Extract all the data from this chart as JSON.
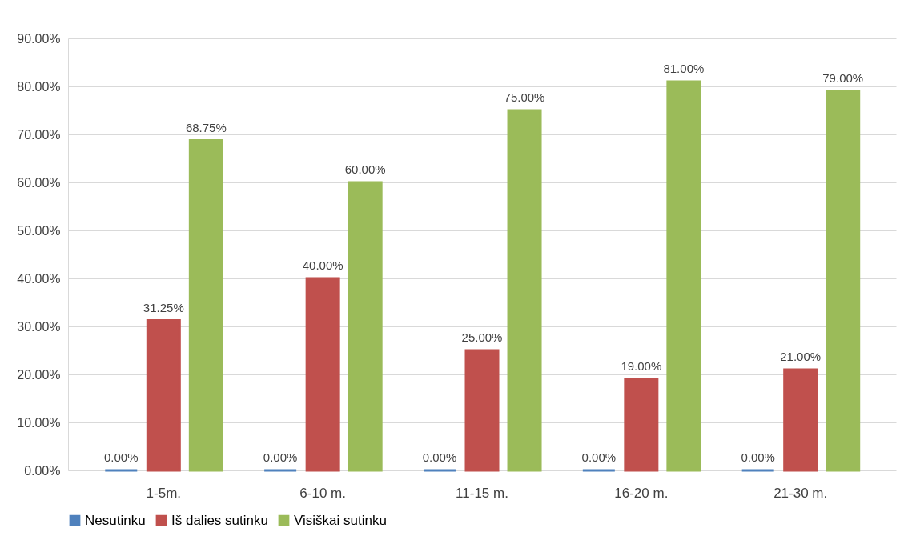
{
  "chart_data": {
    "type": "bar",
    "categories": [
      "1-5m.",
      "6-10 m.",
      "11-15 m.",
      "16-20 m.",
      "21-30 m."
    ],
    "series": [
      {
        "name": "Nesutinku",
        "color": "#4f81bd",
        "values": [
          0,
          0,
          0,
          0,
          0
        ],
        "value_labels": [
          "0.00%",
          "0.00%",
          "0.00%",
          "0.00%",
          "0.00%"
        ]
      },
      {
        "name": "Iš dalies sutinku",
        "color": "#c0504d",
        "values": [
          31.25,
          40,
          25,
          19,
          21
        ],
        "value_labels": [
          "31.25%",
          "40.00%",
          "25.00%",
          "19.00%",
          "21.00%"
        ]
      },
      {
        "name": "Visiškai sutinku",
        "color": "#9bbb59",
        "values": [
          68.75,
          60,
          75,
          81,
          79
        ],
        "value_labels": [
          "68.75%",
          "60.00%",
          "75.00%",
          "81.00%",
          "79.00%"
        ]
      }
    ],
    "ylim": [
      0,
      90
    ],
    "yticks": [
      {
        "value": 0,
        "label": "0.00%"
      },
      {
        "value": 10,
        "label": "10.00%"
      },
      {
        "value": 20,
        "label": "20.00%"
      },
      {
        "value": 30,
        "label": "30.00%"
      },
      {
        "value": 40,
        "label": "40.00%"
      },
      {
        "value": 50,
        "label": "50.00%"
      },
      {
        "value": 60,
        "label": "60.00%"
      },
      {
        "value": 70,
        "label": "70.00%"
      },
      {
        "value": 80,
        "label": "80.00%"
      },
      {
        "value": 90,
        "label": "90.00%"
      }
    ],
    "grid": "y",
    "legend": "bottom"
  }
}
